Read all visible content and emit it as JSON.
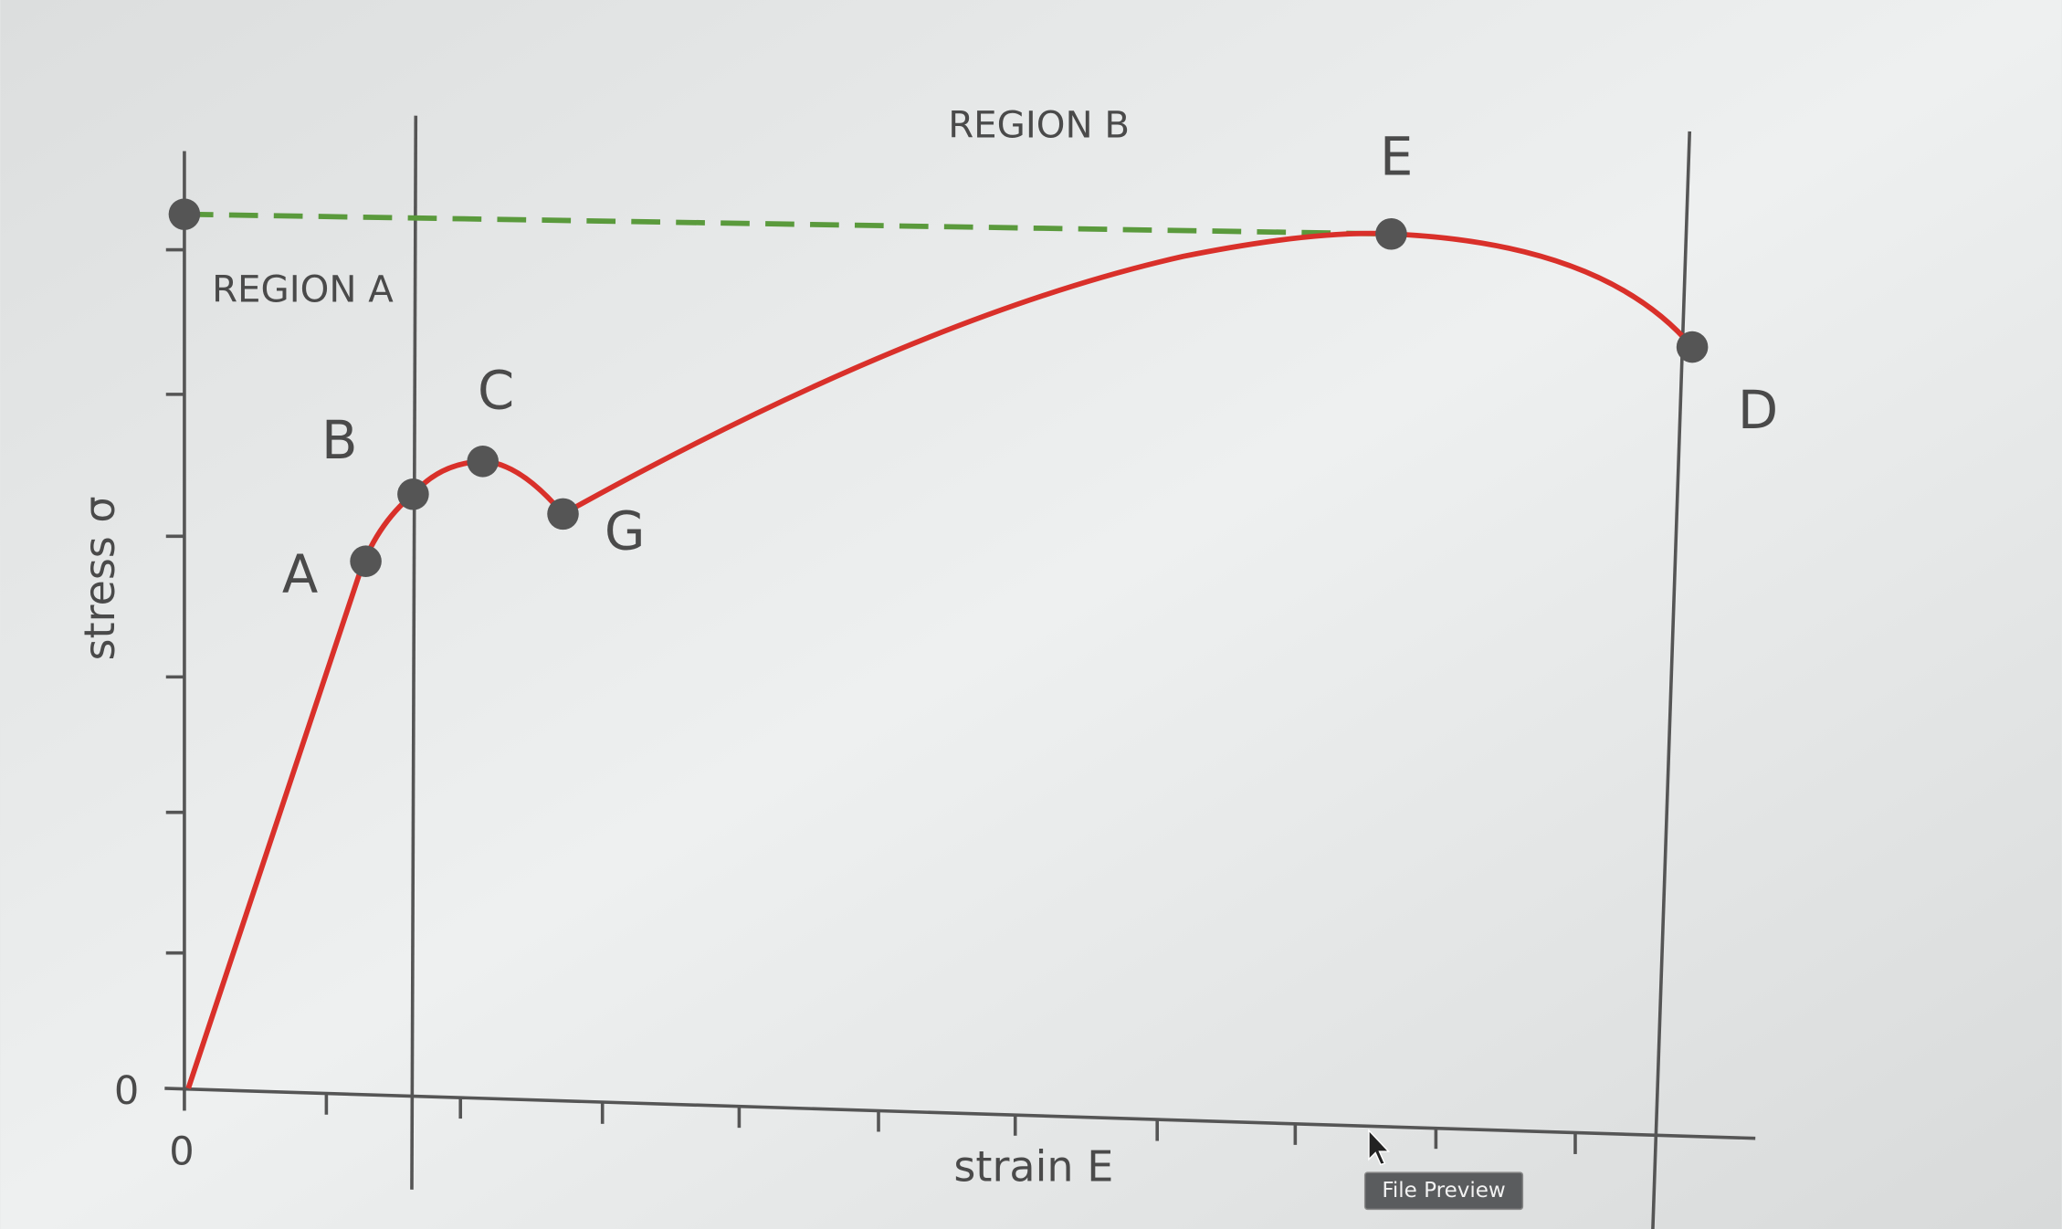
{
  "diagram": {
    "regions": [
      "REGION A",
      "REGION B"
    ],
    "points": [
      "A",
      "B",
      "C",
      "G",
      "E",
      "D"
    ],
    "axes": {
      "y_label": "stress σ",
      "x_label": "strain E",
      "y_origin": "0",
      "x_origin": "0"
    }
  },
  "tooltip": "File Preview"
}
